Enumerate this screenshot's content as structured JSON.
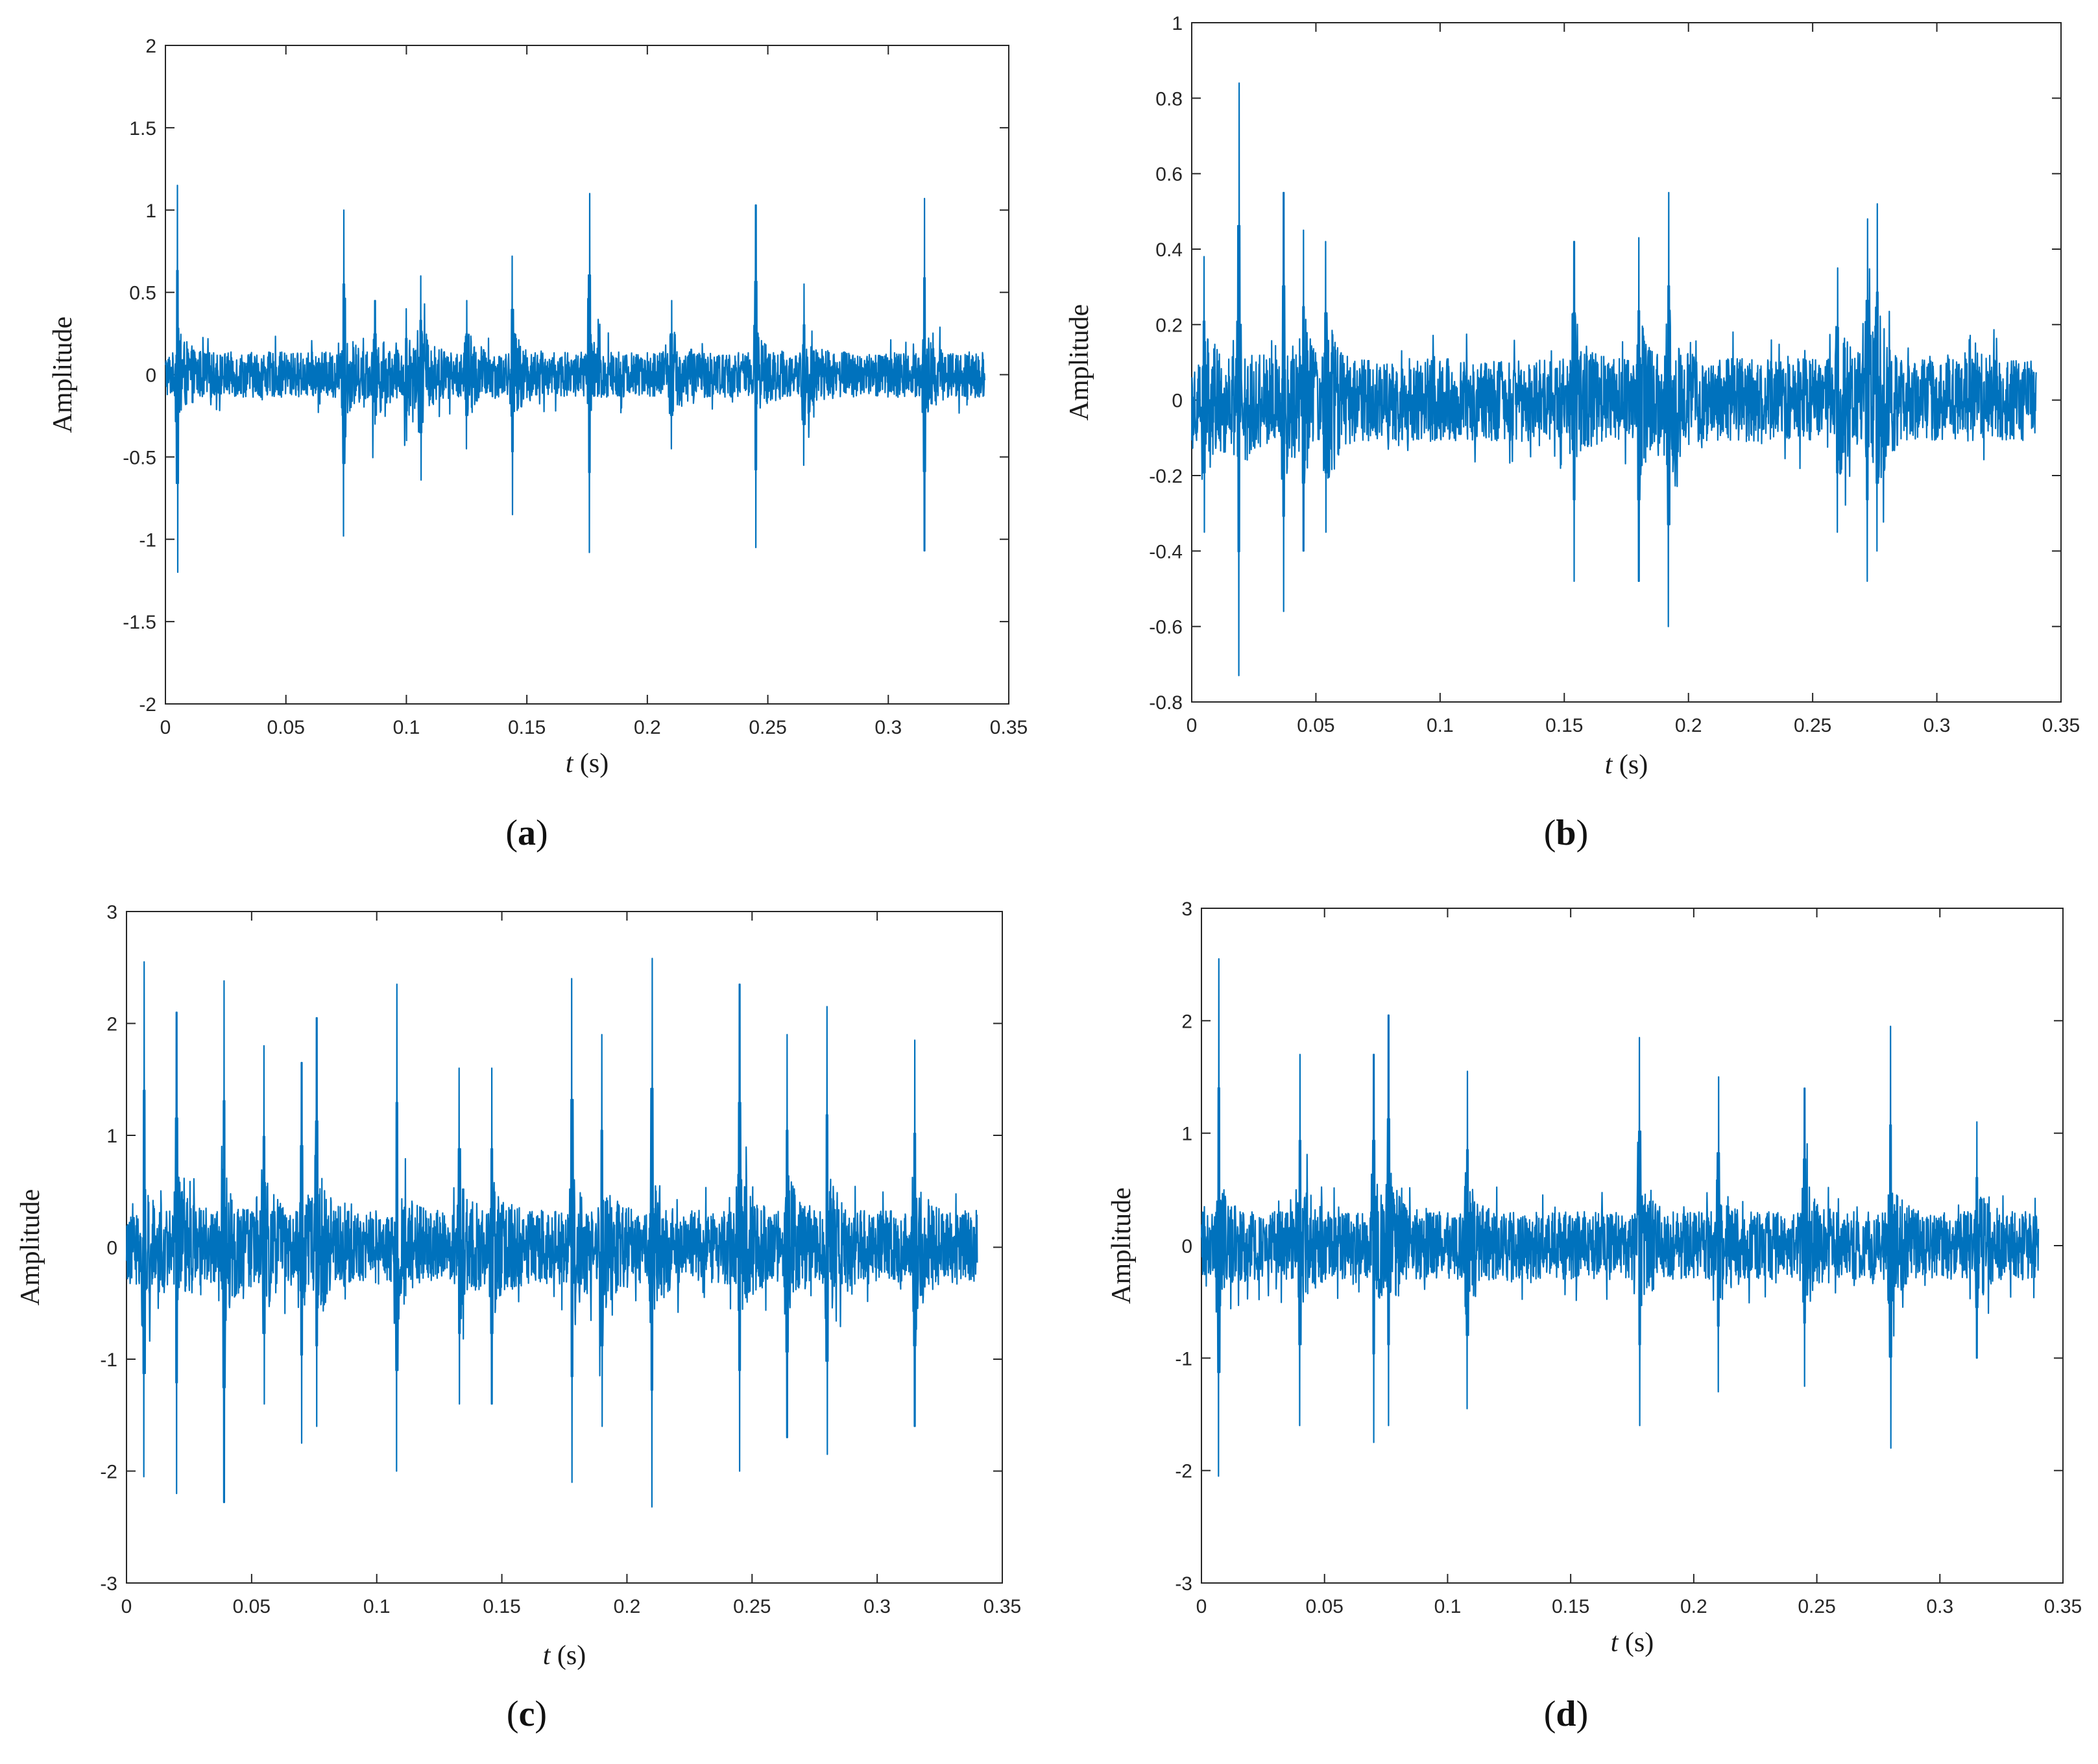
{
  "figure": {
    "captions": [
      "(a)",
      "(b)",
      "(c)",
      "(d)"
    ],
    "caption_letters": [
      "a",
      "b",
      "c",
      "d"
    ]
  },
  "colors": {
    "signal": "#0072BD",
    "axes": "#262626",
    "background": "#ffffff"
  },
  "chart_data": [
    {
      "id": "a",
      "type": "line",
      "xlabel_var": "t",
      "xlabel_unit": " (s)",
      "ylabel": "Amplitude",
      "xlim": [
        0,
        0.35
      ],
      "ylim": [
        -2,
        2
      ],
      "xticks": [
        "0",
        "0.05",
        "0.1",
        "0.15",
        "0.2",
        "0.25",
        "0.3",
        "0.35"
      ],
      "yticks": [
        "2",
        "1.5",
        "1",
        "0.5",
        "0",
        "-0.5",
        "-1",
        "-1.5",
        "-2"
      ],
      "x_end": 0.34,
      "noise_amplitude": 0.25,
      "series": [
        {
          "peaks": [
            {
              "t": 0.005,
              "max": 1.15,
              "min": -1.2
            },
            {
              "t": 0.074,
              "max": 1.0,
              "min": -0.98
            },
            {
              "t": 0.087,
              "max": 0.45,
              "min": -0.3
            },
            {
              "t": 0.1,
              "max": 0.4,
              "min": -0.4
            },
            {
              "t": 0.106,
              "max": 0.6,
              "min": -0.64
            },
            {
              "t": 0.125,
              "max": 0.45,
              "min": -0.45
            },
            {
              "t": 0.144,
              "max": 0.72,
              "min": -0.85
            },
            {
              "t": 0.176,
              "max": 1.1,
              "min": -1.08
            },
            {
              "t": 0.21,
              "max": 0.45,
              "min": -0.45
            },
            {
              "t": 0.245,
              "max": 1.03,
              "min": -1.05
            },
            {
              "t": 0.265,
              "max": 0.55,
              "min": -0.55
            },
            {
              "t": 0.315,
              "max": 1.07,
              "min": -1.07
            }
          ]
        }
      ]
    },
    {
      "id": "b",
      "type": "line",
      "xlabel_var": "t",
      "xlabel_unit": " (s)",
      "ylabel": "Amplitude",
      "xlim": [
        0,
        0.35
      ],
      "ylim": [
        -0.8,
        1
      ],
      "xticks": [
        "0",
        "0.05",
        "0.1",
        "0.15",
        "0.2",
        "0.25",
        "0.3",
        "0.35"
      ],
      "yticks": [
        "1",
        "0.8",
        "0.6",
        "0.4",
        "0.2",
        "0",
        "-0.2",
        "-0.4",
        "-0.6",
        "-0.8"
      ],
      "x_end": 0.34,
      "noise_amplitude": 0.2,
      "series": [
        {
          "peaks": [
            {
              "t": 0.005,
              "max": 0.38,
              "min": -0.35
            },
            {
              "t": 0.019,
              "max": 0.84,
              "min": -0.73
            },
            {
              "t": 0.037,
              "max": 0.55,
              "min": -0.56
            },
            {
              "t": 0.045,
              "max": 0.45,
              "min": -0.4
            },
            {
              "t": 0.054,
              "max": 0.42,
              "min": -0.35
            },
            {
              "t": 0.154,
              "max": 0.42,
              "min": -0.48
            },
            {
              "t": 0.18,
              "max": 0.43,
              "min": -0.48
            },
            {
              "t": 0.192,
              "max": 0.55,
              "min": -0.6
            },
            {
              "t": 0.26,
              "max": 0.35,
              "min": -0.35
            },
            {
              "t": 0.272,
              "max": 0.48,
              "min": -0.48
            },
            {
              "t": 0.276,
              "max": 0.52,
              "min": -0.4
            }
          ]
        }
      ]
    },
    {
      "id": "c",
      "type": "line",
      "xlabel_var": "t",
      "xlabel_unit": " (s)",
      "ylabel": "Amplitude",
      "xlim": [
        0,
        0.35
      ],
      "ylim": [
        -3,
        3
      ],
      "xticks": [
        "0",
        "0.05",
        "0.1",
        "0.15",
        "0.2",
        "0.25",
        "0.3",
        "0.35"
      ],
      "yticks": [
        "3",
        "2",
        "1",
        "0",
        "-1",
        "-2",
        "-3"
      ],
      "x_end": 0.34,
      "noise_amplitude": 0.6,
      "series": [
        {
          "peaks": [
            {
              "t": 0.007,
              "max": 2.55,
              "min": -2.05
            },
            {
              "t": 0.02,
              "max": 2.1,
              "min": -2.2
            },
            {
              "t": 0.039,
              "max": 2.38,
              "min": -2.28
            },
            {
              "t": 0.055,
              "max": 1.8,
              "min": -1.4
            },
            {
              "t": 0.07,
              "max": 1.65,
              "min": -1.75
            },
            {
              "t": 0.076,
              "max": 2.05,
              "min": -1.6
            },
            {
              "t": 0.108,
              "max": 2.35,
              "min": -2.0
            },
            {
              "t": 0.133,
              "max": 1.6,
              "min": -1.4
            },
            {
              "t": 0.146,
              "max": 1.6,
              "min": -1.4
            },
            {
              "t": 0.178,
              "max": 2.4,
              "min": -2.1
            },
            {
              "t": 0.19,
              "max": 1.9,
              "min": -1.6
            },
            {
              "t": 0.21,
              "max": 2.58,
              "min": -2.32
            },
            {
              "t": 0.245,
              "max": 2.35,
              "min": -2.0
            },
            {
              "t": 0.264,
              "max": 1.9,
              "min": -1.7
            },
            {
              "t": 0.28,
              "max": 2.15,
              "min": -1.85
            },
            {
              "t": 0.315,
              "max": 1.85,
              "min": -1.6
            }
          ]
        }
      ]
    },
    {
      "id": "d",
      "type": "line",
      "xlabel_var": "t",
      "xlabel_unit": " (s)",
      "ylabel": "Amplitude",
      "xlim": [
        0,
        0.35
      ],
      "ylim": [
        -3,
        3
      ],
      "xticks": [
        "0",
        "0.05",
        "0.1",
        "0.15",
        "0.2",
        "0.25",
        "0.3",
        "0.35"
      ],
      "yticks": [
        "3",
        "2",
        "1",
        "0",
        "-1",
        "-2",
        "-3"
      ],
      "x_end": 0.34,
      "noise_amplitude": 0.55,
      "series": [
        {
          "peaks": [
            {
              "t": 0.007,
              "max": 2.55,
              "min": -2.05
            },
            {
              "t": 0.04,
              "max": 1.7,
              "min": -1.6
            },
            {
              "t": 0.07,
              "max": 1.7,
              "min": -1.75
            },
            {
              "t": 0.076,
              "max": 2.05,
              "min": -1.6
            },
            {
              "t": 0.108,
              "max": 1.55,
              "min": -1.45
            },
            {
              "t": 0.178,
              "max": 1.85,
              "min": -1.6
            },
            {
              "t": 0.21,
              "max": 1.5,
              "min": -1.3
            },
            {
              "t": 0.245,
              "max": 1.4,
              "min": -1.25
            },
            {
              "t": 0.28,
              "max": 1.95,
              "min": -1.8
            },
            {
              "t": 0.315,
              "max": 1.1,
              "min": -1.0
            }
          ]
        }
      ]
    }
  ]
}
